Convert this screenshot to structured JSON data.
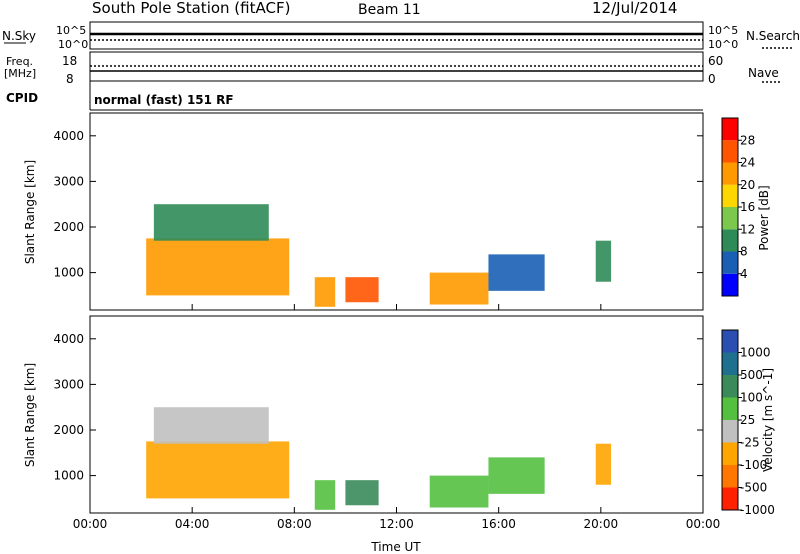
{
  "header": {
    "station": "South Pole Station (fitACF)",
    "beam": "Beam 11",
    "date": "12/Jul/2014"
  },
  "summary_panels": {
    "nsky_label": "N.Sky",
    "nsky_ticks": [
      "10^5",
      "10^0"
    ],
    "nsearch_label": "N.Search",
    "nsearch_ticks": [
      "10^5",
      "10^0"
    ],
    "freq_label_1": "Freq.",
    "freq_label_2": "[MHz]",
    "freq_ticks": [
      "18",
      "8"
    ],
    "nave_label": "Nave",
    "nave_ticks": [
      "60",
      "0"
    ],
    "cpid_label": "CPID",
    "cpid_value": "normal (fast) 151 RF"
  },
  "colors": {
    "power_scale": [
      "#0000ff",
      "#1a5fb4",
      "#2e8b57",
      "#7cc84c",
      "#ffd700",
      "#ff9900",
      "#ff5500",
      "#ff0000"
    ],
    "velocity_scale": [
      "#2a4fb0",
      "#1f6f8f",
      "#3a8a5a",
      "#55c040",
      "#c0c0c0",
      "#ffa500",
      "#ff7700",
      "#ff2200"
    ]
  },
  "chart_data": [
    {
      "type": "heatmap",
      "title": "Power",
      "xlabel": "",
      "ylabel": "Slant Range [km]",
      "x_ticks": [
        "00:00",
        "04:00",
        "08:00",
        "12:00",
        "16:00",
        "20:00",
        "00:00"
      ],
      "y_ticks": [
        "4000",
        "3000",
        "2000",
        "1000"
      ],
      "ylim": [
        180,
        4500
      ],
      "colorbar_label": "Power [dB]",
      "colorbar_ticks": [
        "28",
        "24",
        "20",
        "16",
        "12",
        "8",
        "4"
      ],
      "clim": [
        0,
        32
      ],
      "regions": [
        {
          "t": [
            2.2,
            7.8
          ],
          "r": [
            500,
            1750
          ],
          "level": 22
        },
        {
          "t": [
            2.5,
            7.0
          ],
          "r": [
            1700,
            2500
          ],
          "level": 8
        },
        {
          "t": [
            8.8,
            9.6
          ],
          "r": [
            250,
            900
          ],
          "level": 22
        },
        {
          "t": [
            10.0,
            11.3
          ],
          "r": [
            350,
            900
          ],
          "level": 24
        },
        {
          "t": [
            13.3,
            15.6
          ],
          "r": [
            300,
            1000
          ],
          "level": 22
        },
        {
          "t": [
            15.6,
            17.8
          ],
          "r": [
            600,
            1400
          ],
          "level": 6
        },
        {
          "t": [
            19.8,
            20.4
          ],
          "r": [
            800,
            1700
          ],
          "level": 8
        }
      ]
    },
    {
      "type": "heatmap",
      "title": "Velocity",
      "xlabel": "Time UT",
      "ylabel": "Slant Range [km]",
      "x_ticks": [
        "00:00",
        "04:00",
        "08:00",
        "12:00",
        "16:00",
        "20:00",
        "00:00"
      ],
      "y_ticks": [
        "4000",
        "3000",
        "2000",
        "1000"
      ],
      "ylim": [
        180,
        4500
      ],
      "colorbar_label": "Velocity [m s^-1]",
      "colorbar_ticks": [
        "1000",
        "500",
        "100",
        "25",
        "-25",
        "-100",
        "-500",
        "-1000"
      ],
      "clim": [
        -1000,
        1000
      ],
      "regions": [
        {
          "t": [
            2.2,
            7.8
          ],
          "r": [
            500,
            1750
          ],
          "level": -300
        },
        {
          "t": [
            2.5,
            7.0
          ],
          "r": [
            1700,
            2500
          ],
          "level": 0
        },
        {
          "t": [
            8.8,
            9.6
          ],
          "r": [
            250,
            900
          ],
          "level": 200
        },
        {
          "t": [
            10.0,
            11.3
          ],
          "r": [
            350,
            900
          ],
          "level": 300
        },
        {
          "t": [
            13.3,
            15.6
          ],
          "r": [
            300,
            1000
          ],
          "level": 200
        },
        {
          "t": [
            15.6,
            17.8
          ],
          "r": [
            600,
            1400
          ],
          "level": 150
        },
        {
          "t": [
            19.8,
            20.4
          ],
          "r": [
            800,
            1700
          ],
          "level": -300
        }
      ]
    }
  ]
}
